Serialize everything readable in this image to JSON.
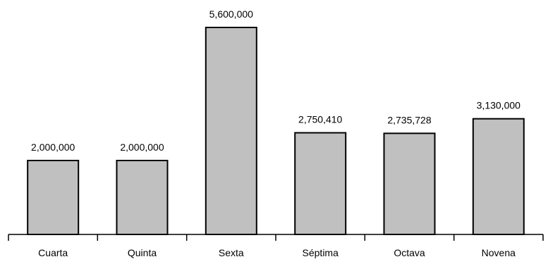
{
  "chart_data": {
    "type": "bar",
    "categories": [
      "Cuarta",
      "Quinta",
      "Sexta",
      "Séptima",
      "Octava",
      "Novena"
    ],
    "values": [
      2000000,
      2000000,
      5600000,
      2750410,
      2735728,
      3130000
    ],
    "value_labels": [
      "2,000,000",
      "2,000,000",
      "5,600,000",
      "2,750,410",
      "2,735,728",
      "3,130,000"
    ],
    "title": "",
    "xlabel": "",
    "ylabel": "",
    "ylim": [
      0,
      5600000
    ],
    "grid": false,
    "legend": "none",
    "colors": {
      "bar_fill": "#c0c0c0",
      "bar_stroke": "#000000"
    }
  }
}
